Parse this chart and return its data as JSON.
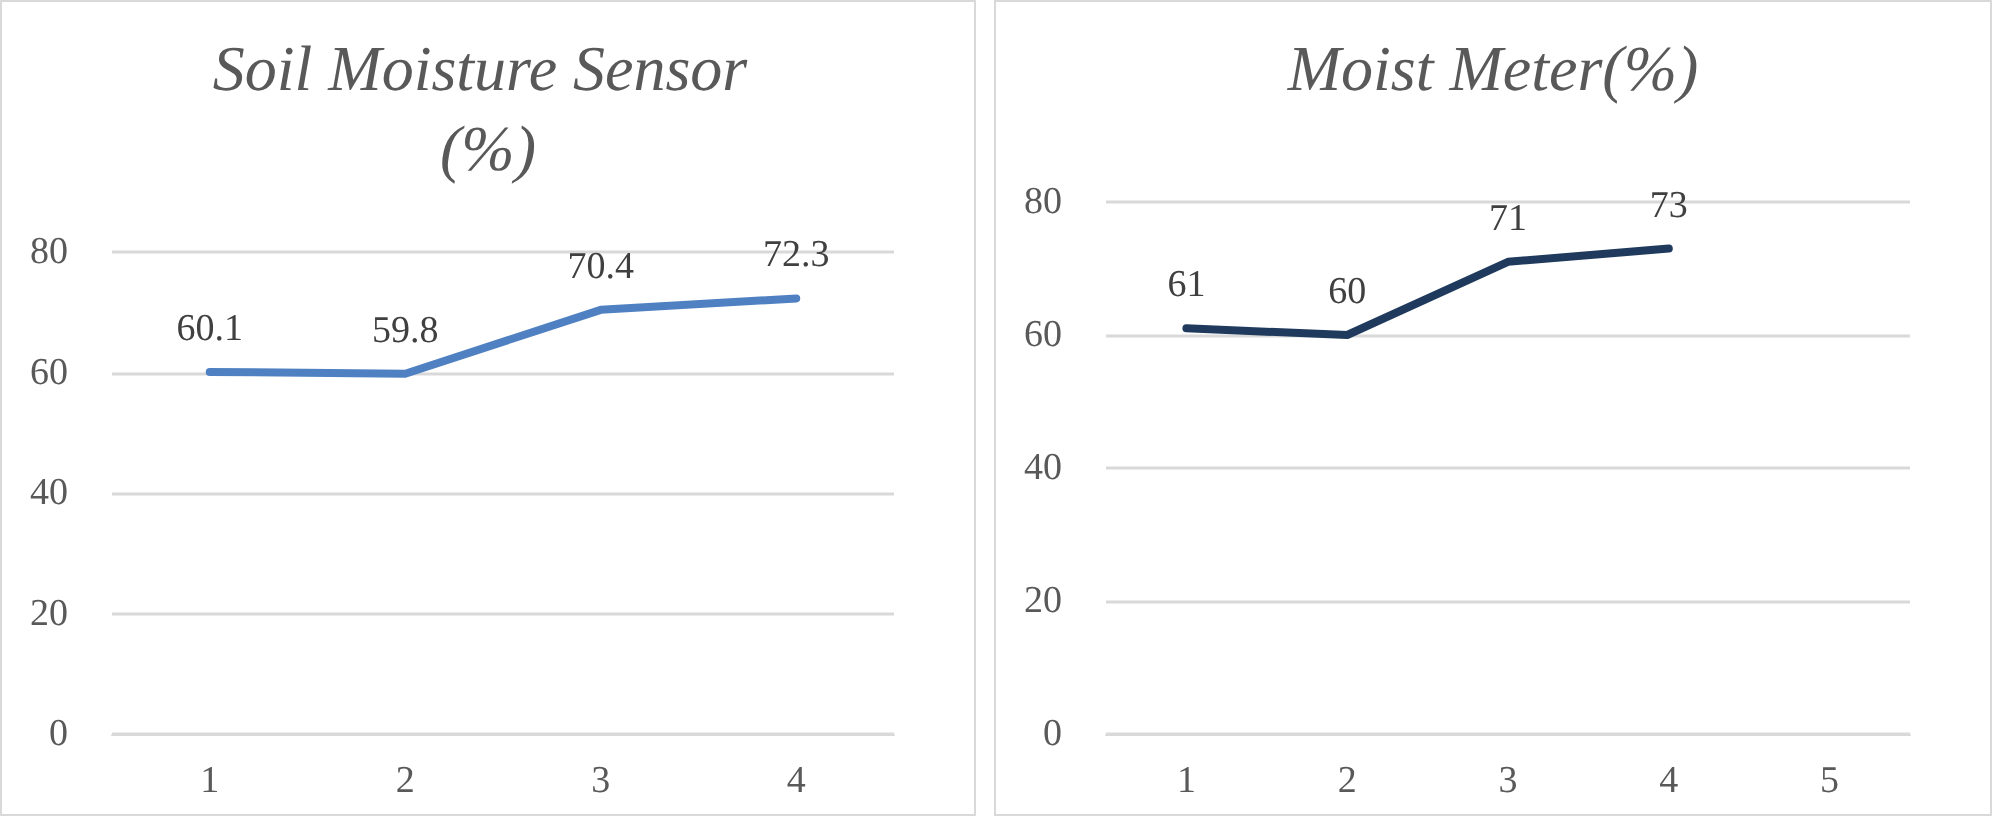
{
  "chart_data": [
    {
      "type": "line",
      "title": "Soil Moisture Sensor (%)",
      "categories": [
        "1",
        "2",
        "3",
        "4"
      ],
      "series": [
        {
          "color": "#4f81c2",
          "values": [
            60.1,
            59.8,
            70.4,
            72.3
          ]
        }
      ],
      "ylim": [
        0,
        80
      ],
      "yticks": [
        0,
        20,
        40,
        60,
        80
      ],
      "grid": "y",
      "data_labels": true,
      "marker": "none"
    },
    {
      "type": "line",
      "title": "Moist Meter(%)",
      "categories": [
        "1",
        "2",
        "3",
        "4",
        "5"
      ],
      "series": [
        {
          "color": "#1f3a5c",
          "values": [
            61,
            60,
            71,
            73,
            null
          ]
        }
      ],
      "ylim": [
        0,
        80
      ],
      "yticks": [
        0,
        20,
        40,
        60,
        80
      ],
      "grid": "y",
      "data_labels": true,
      "marker": "none"
    }
  ]
}
